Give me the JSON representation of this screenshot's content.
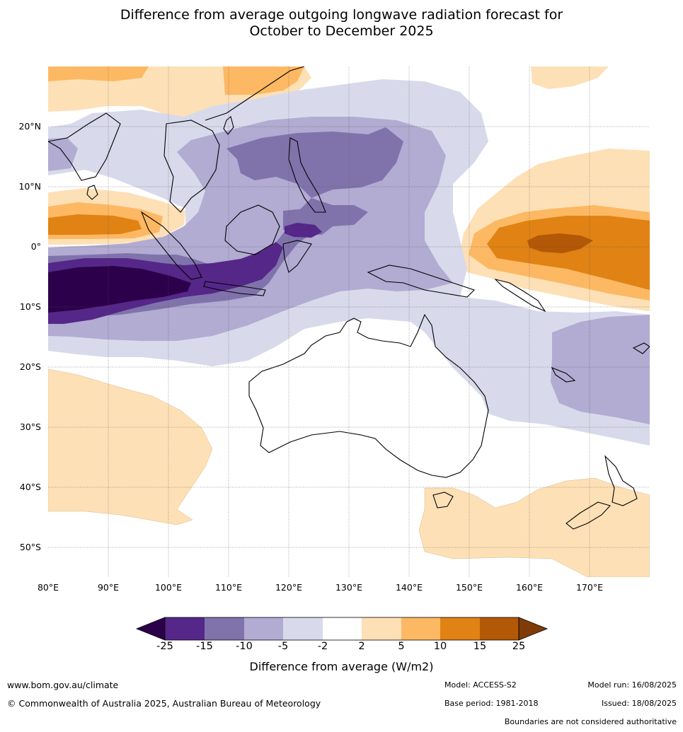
{
  "title": {
    "line1": "Difference from average outgoing longwave radiation forecast for",
    "line2": "October to December 2025"
  },
  "map": {
    "lon_range": [
      80,
      180
    ],
    "lat_range": [
      -55,
      30
    ],
    "lat_labels": [
      "20°N",
      "10°N",
      "0°",
      "10°S",
      "20°S",
      "30°S",
      "40°S",
      "50°S"
    ],
    "lon_labels": [
      "80°E",
      "90°E",
      "100°E",
      "110°E",
      "120°E",
      "130°E",
      "140°E",
      "150°E",
      "160°E",
      "170°E"
    ]
  },
  "colorbar": {
    "ticks": [
      "-25",
      "-15",
      "-10",
      "-5",
      "-2",
      "2",
      "5",
      "10",
      "15",
      "25"
    ],
    "colors": [
      "#2d004b",
      "#542788",
      "#8073ac",
      "#b2abd2",
      "#d8daeb",
      "#ffffff",
      "#fee0b6",
      "#fdb863",
      "#e08214",
      "#b35806",
      "#7f3b08"
    ],
    "title": "Difference from average (W/m2)"
  },
  "footer": {
    "website": "www.bom.gov.au/climate",
    "copyright": "© Commonwealth of Australia 2025, Australian Bureau of Meteorology",
    "model": "Model: ACCESS-S2",
    "model_run": "Model run: 16/08/2025",
    "base_period": "Base period: 1981-2018",
    "issued": "Issued: 18/08/2025",
    "boundaries": "Boundaries are not considered authoritative"
  }
}
